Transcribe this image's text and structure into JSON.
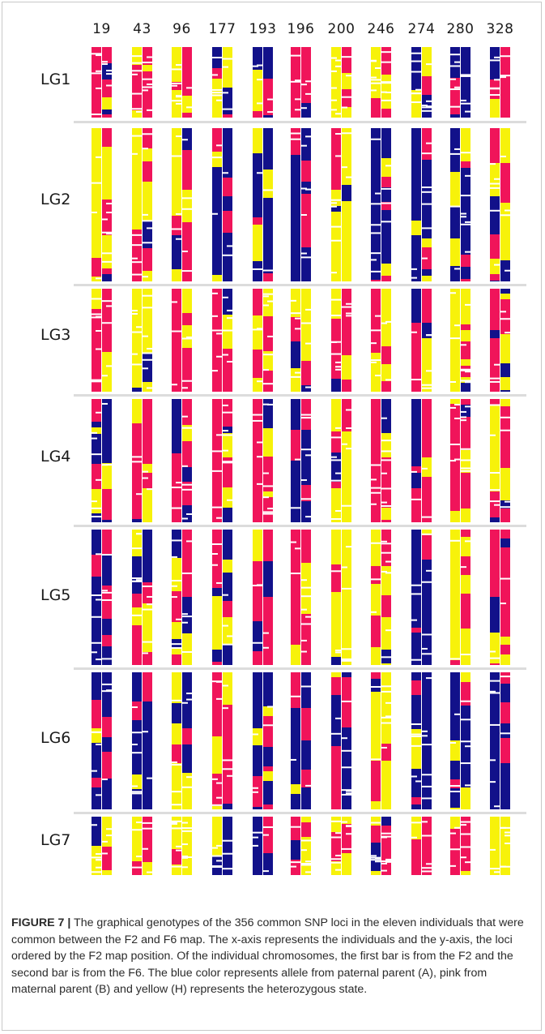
{
  "individuals": [
    "19",
    "43",
    "96",
    "177",
    "193",
    "196",
    "200",
    "246",
    "274",
    "280",
    "328"
  ],
  "linkage_groups": [
    "LG1",
    "LG2",
    "LG3",
    "LG4",
    "LG5",
    "LG6",
    "LG7"
  ],
  "caption": {
    "label": "FIGURE 7 |",
    "text": "The graphical genotypes of the 356 common SNP loci in the eleven individuals that were common between the F2 and F6 map. The x-axis represents the individuals and the y-axis, the loci ordered by the F2 map position. Of the individual chromosomes, the first bar is from the F2 and the second bar is from the F6. The blue color represents allele from paternal parent (A), pink from maternal parent (B) and yellow (H) represents the heterozygous state."
  },
  "colors": {
    "A": "#12118a",
    "B": "#f0145a",
    "H": "#f7f20a",
    "missing": "#ffffff"
  },
  "chart_data": {
    "type": "heatmap",
    "x_categories": [
      "19",
      "43",
      "96",
      "177",
      "193",
      "196",
      "200",
      "246",
      "274",
      "280",
      "328"
    ],
    "y_groups": [
      "LG1",
      "LG2",
      "LG3",
      "LG4",
      "LG5",
      "LG6",
      "LG7"
    ],
    "bars_per_individual": [
      "F2",
      "F6"
    ],
    "states": {
      "A": "paternal parent",
      "B": "maternal parent",
      "H": "heterozygous"
    },
    "total_loci": 356,
    "dominant_state": {
      "LG1": [
        "B",
        "B",
        "B",
        "H",
        "A",
        "B",
        "H",
        "H",
        "A",
        "A",
        "B"
      ],
      "LG2": [
        "H",
        "H",
        "H",
        "A",
        "A",
        "A",
        "H",
        "A",
        "A",
        "A",
        "B"
      ],
      "LG3": [
        "B",
        "H",
        "B",
        "B",
        "B",
        "H",
        "B",
        "H",
        "B",
        "H",
        "B"
      ],
      "LG4": [
        "A",
        "B",
        "B",
        "B",
        "B",
        "A",
        "H",
        "B",
        "B",
        "B",
        "H"
      ],
      "LG5": [
        "A",
        "H",
        "B",
        "A",
        "B",
        "B",
        "H",
        "H",
        "A",
        "H",
        "B"
      ],
      "LG6": [
        "A",
        "A",
        "H",
        "B",
        "A",
        "A",
        "A",
        "H",
        "A",
        "A",
        "A"
      ],
      "LG7": [
        "H",
        "B",
        "H",
        "H",
        "A",
        "B",
        "H",
        "A",
        "B",
        "B",
        "H"
      ]
    }
  }
}
